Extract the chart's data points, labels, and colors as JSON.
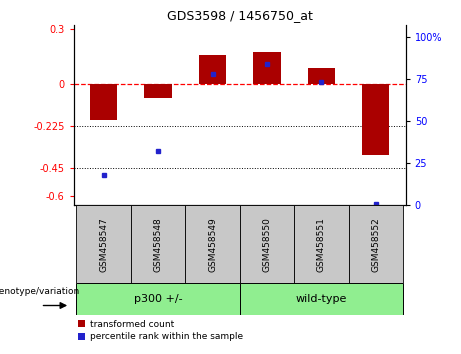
{
  "title": "GDS3598 / 1456750_at",
  "samples": [
    "GSM458547",
    "GSM458548",
    "GSM458549",
    "GSM458550",
    "GSM458551",
    "GSM458552"
  ],
  "group_labels": [
    "p300 +/-",
    "wild-type"
  ],
  "bar_values": [
    -0.19,
    -0.075,
    0.155,
    0.175,
    0.09,
    -0.38
  ],
  "dot_values_pct": [
    18,
    32,
    78,
    84,
    73,
    1
  ],
  "ylim_left": [
    -0.65,
    0.32
  ],
  "ylim_right": [
    0,
    107
  ],
  "yticks_left": [
    0.3,
    0.0,
    -0.225,
    -0.45,
    -0.6
  ],
  "ytick_left_labels": [
    "0.3",
    "0",
    "-0.225",
    "-0.45",
    "-0.6"
  ],
  "yticks_right": [
    100,
    75,
    50,
    25,
    0
  ],
  "ytick_right_labels": [
    "100%",
    "75",
    "50",
    "25",
    "0"
  ],
  "hlines_dotted": [
    -0.225,
    -0.45
  ],
  "hline_dashed": 0.0,
  "bar_color": "#aa0000",
  "dot_color": "#2222cc",
  "bar_width": 0.5,
  "group1_indices": [
    0,
    1,
    2
  ],
  "group2_indices": [
    3,
    4,
    5
  ],
  "genotype_label": "genotype/variation",
  "legend_bar_label": "transformed count",
  "legend_dot_label": "percentile rank within the sample",
  "sample_box_color": "#c8c8c8",
  "group1_color": "#90ee90",
  "group2_color": "#90ee90"
}
